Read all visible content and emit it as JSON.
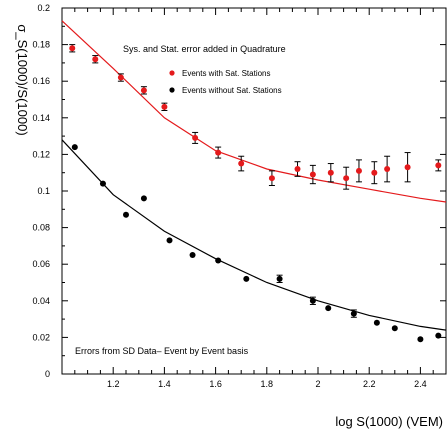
{
  "chart_data": {
    "type": "scatter",
    "title": "",
    "xlabel": "log  S(1000) (VEM)",
    "ylabel": "σ_S(1000)/S(1000)",
    "xlim": [
      1.0,
      2.5
    ],
    "ylim": [
      0,
      0.2
    ],
    "xticks": [
      1.2,
      1.4,
      1.6,
      1.8,
      2.0,
      2.2,
      2.4
    ],
    "xtick_labels": [
      "1.2",
      "1.4",
      "1.6",
      "1.8",
      "2",
      "2.2",
      "2.4"
    ],
    "yticks": [
      0,
      0.02,
      0.04,
      0.06,
      0.08,
      0.1,
      0.12,
      0.14,
      0.16,
      0.18,
      0.2
    ],
    "ytick_labels": [
      "0",
      "0.02",
      "0.04",
      "0.06",
      "0.08",
      "0.1",
      "0.12",
      "0.14",
      "0.16",
      "0.18",
      "0.2"
    ],
    "grid": false,
    "legend_position": "top-right",
    "annotations": {
      "top": "Sys. and Stat. error added in Quadrature",
      "bottom": "Errors from SD Data– Event by Event basis"
    },
    "series": [
      {
        "name": "Events with Sat. Stations",
        "color": "#e41a1c",
        "marker": "filled-circle",
        "x": [
          1.04,
          1.13,
          1.23,
          1.32,
          1.4,
          1.52,
          1.61,
          1.7,
          1.82,
          1.92,
          1.98,
          2.05,
          2.11,
          2.16,
          2.22,
          2.27,
          2.35,
          2.47
        ],
        "y": [
          0.178,
          0.172,
          0.162,
          0.155,
          0.146,
          0.129,
          0.121,
          0.115,
          0.107,
          0.112,
          0.109,
          0.11,
          0.107,
          0.111,
          0.11,
          0.112,
          0.113,
          0.114
        ],
        "yerr": [
          0.002,
          0.002,
          0.002,
          0.002,
          0.002,
          0.003,
          0.003,
          0.004,
          0.004,
          0.004,
          0.005,
          0.005,
          0.006,
          0.006,
          0.006,
          0.007,
          0.008,
          0.003
        ],
        "fit": {
          "x": [
            1.0,
            1.2,
            1.4,
            1.6,
            1.8,
            2.0,
            2.2,
            2.4,
            2.5
          ],
          "y": [
            0.193,
            0.167,
            0.14,
            0.122,
            0.112,
            0.106,
            0.101,
            0.096,
            0.094
          ]
        }
      },
      {
        "name": "Events without Sat. Stations",
        "color": "#000000",
        "marker": "filled-circle",
        "x": [
          1.05,
          1.16,
          1.25,
          1.32,
          1.42,
          1.51,
          1.61,
          1.72,
          1.85,
          1.98,
          2.04,
          2.14,
          2.23,
          2.3,
          2.4,
          2.47
        ],
        "y": [
          0.124,
          0.104,
          0.087,
          0.096,
          0.073,
          0.065,
          0.062,
          0.052,
          0.052,
          0.04,
          0.036,
          0.033,
          0.028,
          0.025,
          0.019,
          0.021
        ],
        "yerr": [
          0,
          0,
          0,
          0,
          0,
          0,
          0,
          0,
          0.002,
          0.002,
          0,
          0.002,
          0,
          0,
          0,
          0
        ],
        "fit": {
          "x": [
            1.0,
            1.2,
            1.4,
            1.6,
            1.8,
            2.0,
            2.2,
            2.4,
            2.5
          ],
          "y": [
            0.128,
            0.098,
            0.078,
            0.063,
            0.05,
            0.04,
            0.032,
            0.026,
            0.024
          ]
        }
      }
    ]
  }
}
